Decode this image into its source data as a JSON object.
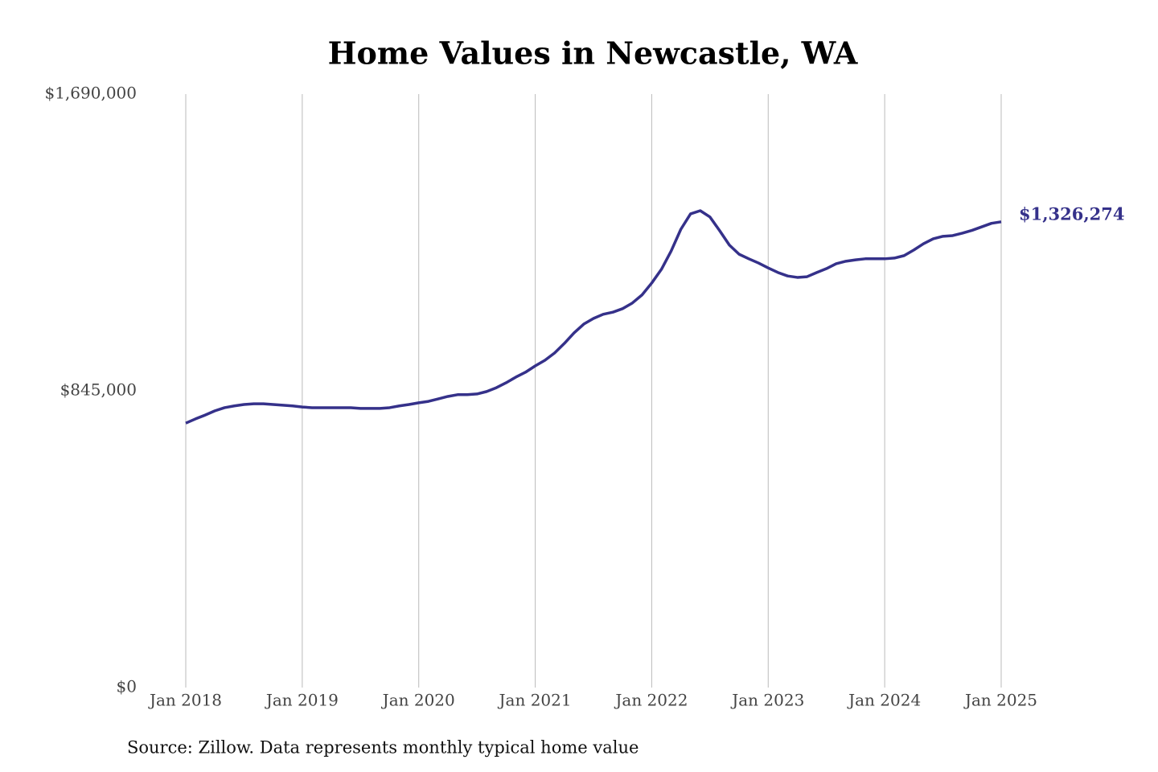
{
  "chart_data": {
    "type": "line",
    "title": "Home Values in Newcastle, WA",
    "source": "Source: Zillow. Data represents monthly typical home value",
    "categories": [
      "Jan 2018",
      null,
      null,
      null,
      null,
      null,
      null,
      null,
      null,
      null,
      null,
      null,
      "Jan 2019",
      null,
      null,
      null,
      null,
      null,
      null,
      null,
      null,
      null,
      null,
      null,
      "Jan 2020",
      null,
      null,
      null,
      null,
      null,
      null,
      null,
      null,
      null,
      null,
      null,
      "Jan 2021",
      null,
      null,
      null,
      null,
      null,
      null,
      null,
      null,
      null,
      null,
      null,
      "Jan 2022",
      null,
      null,
      null,
      null,
      null,
      null,
      null,
      null,
      null,
      null,
      null,
      "Jan 2023",
      null,
      null,
      null,
      null,
      null,
      null,
      null,
      null,
      null,
      null,
      null,
      "Jan 2024",
      null,
      null,
      null,
      null,
      null,
      null,
      null,
      null,
      null,
      null,
      null,
      "Jan 2025"
    ],
    "values": [
      753000,
      765000,
      776000,
      788000,
      797000,
      802000,
      806000,
      808000,
      808000,
      806000,
      804000,
      802000,
      799000,
      797000,
      797000,
      797000,
      797000,
      797000,
      795000,
      795000,
      795000,
      797000,
      802000,
      806000,
      811000,
      815000,
      822000,
      829000,
      834000,
      834000,
      836000,
      843000,
      854000,
      868000,
      884000,
      898000,
      916000,
      932000,
      953000,
      980000,
      1010000,
      1035000,
      1051000,
      1063000,
      1069000,
      1079000,
      1095000,
      1118000,
      1152000,
      1191000,
      1243000,
      1305000,
      1349000,
      1358000,
      1340000,
      1301000,
      1260000,
      1234000,
      1221000,
      1209000,
      1195000,
      1182000,
      1172000,
      1168000,
      1170000,
      1182000,
      1193000,
      1207000,
      1214000,
      1218000,
      1221000,
      1221000,
      1221000,
      1223000,
      1230000,
      1246000,
      1264000,
      1278000,
      1285000,
      1287000,
      1294000,
      1302000,
      1312000,
      1322000,
      1326274
    ],
    "value_labels": [
      null,
      null,
      null,
      null,
      null,
      null,
      null,
      null,
      null,
      null,
      null,
      null,
      null,
      null,
      null,
      null,
      null,
      null,
      null,
      null,
      null,
      null,
      null,
      null,
      null,
      null,
      null,
      null,
      null,
      null,
      null,
      null,
      null,
      null,
      null,
      null,
      null,
      null,
      null,
      null,
      null,
      null,
      null,
      null,
      null,
      null,
      null,
      null,
      null,
      null,
      null,
      null,
      null,
      null,
      null,
      null,
      null,
      null,
      null,
      null,
      null,
      null,
      null,
      null,
      null,
      null,
      null,
      null,
      null,
      null,
      null,
      null,
      null,
      null,
      null,
      null,
      null,
      null,
      null,
      null,
      null,
      null,
      null,
      null,
      "$1,326,274"
    ],
    "color": "#35318a",
    "ylim": [
      0,
      1690000
    ],
    "yticks": [
      {
        "value": 0,
        "label": "$0"
      },
      {
        "value": 845000,
        "label": "$845,000"
      },
      {
        "value": 1690000,
        "label": "$1,690,000"
      }
    ],
    "grid": true
  }
}
